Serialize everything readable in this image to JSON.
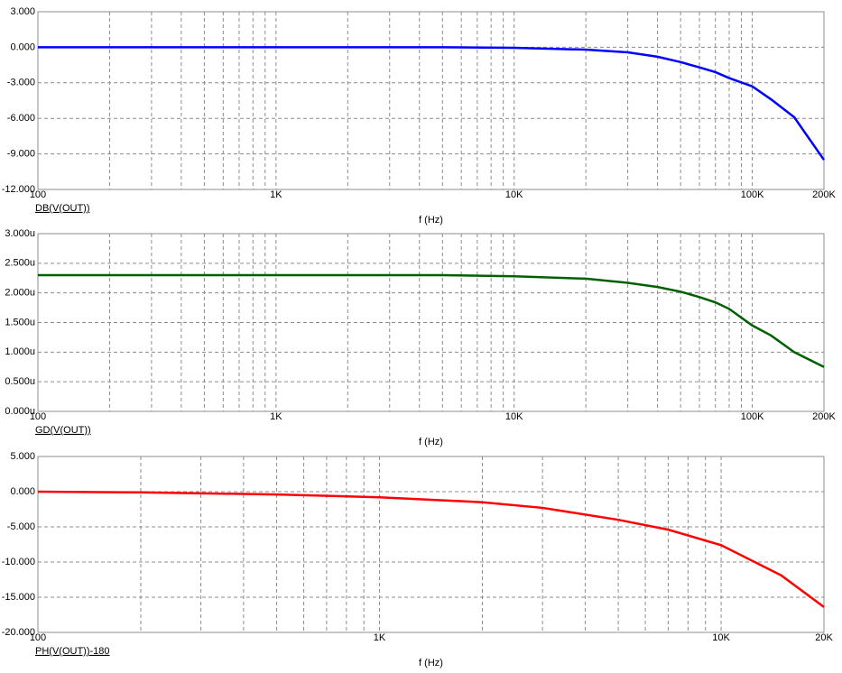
{
  "chart_data": [
    {
      "type": "line",
      "xlog": true,
      "grid": true,
      "xlabel": "f (Hz)",
      "x": [
        100,
        1000,
        5000,
        10000,
        20000,
        30000,
        40000,
        50000,
        60000,
        70000,
        80000,
        100000,
        120000,
        150000,
        200000
      ],
      "series": [
        {
          "name": "DB(V(OUT))",
          "color": "#0000ff",
          "values": [
            0,
            0,
            0,
            -0.05,
            -0.2,
            -0.43,
            -0.8,
            -1.25,
            -1.7,
            -2.1,
            -2.6,
            -3.3,
            -4.4,
            -5.9,
            -9.5
          ]
        }
      ],
      "xlim": [
        100,
        200000
      ],
      "xticks": [
        100,
        {
          "value": 1000,
          "label": "1K"
        },
        {
          "value": 10000,
          "label": "10K"
        },
        {
          "value": 100000,
          "label": "100K"
        },
        {
          "value": 200000,
          "label": "200K"
        }
      ],
      "minor_xticks": [
        200,
        300,
        400,
        500,
        600,
        700,
        800,
        900,
        2000,
        3000,
        4000,
        5000,
        6000,
        7000,
        8000,
        9000,
        20000,
        30000,
        40000,
        50000,
        60000,
        70000,
        80000,
        90000
      ],
      "ylim": [
        -12,
        3
      ],
      "yticks": [
        {
          "value": -12,
          "label": "-12.000"
        },
        {
          "value": -9,
          "label": "-9.000"
        },
        {
          "value": -6,
          "label": "-6.000"
        },
        {
          "value": -3,
          "label": "-3.000"
        },
        {
          "value": 0,
          "label": "0.000"
        },
        {
          "value": 3,
          "label": "3.000"
        }
      ]
    },
    {
      "type": "line",
      "xlog": true,
      "grid": true,
      "xlabel": "f (Hz)",
      "x": [
        100,
        1000,
        5000,
        10000,
        20000,
        30000,
        40000,
        50000,
        60000,
        70000,
        80000,
        100000,
        120000,
        150000,
        200000
      ],
      "series": [
        {
          "name": "GD(V(OUT))",
          "color": "#006000",
          "values": [
            2.3,
            2.3,
            2.3,
            2.28,
            2.24,
            2.17,
            2.1,
            2.02,
            1.93,
            1.84,
            1.73,
            1.45,
            1.28,
            1.0,
            0.75
          ]
        }
      ],
      "xlim": [
        100,
        200000
      ],
      "xticks": [
        100,
        {
          "value": 1000,
          "label": "1K"
        },
        {
          "value": 10000,
          "label": "10K"
        },
        {
          "value": 100000,
          "label": "100K"
        },
        {
          "value": 200000,
          "label": "200K"
        }
      ],
      "minor_xticks": [
        200,
        300,
        400,
        500,
        600,
        700,
        800,
        900,
        2000,
        3000,
        4000,
        5000,
        6000,
        7000,
        8000,
        9000,
        20000,
        30000,
        40000,
        50000,
        60000,
        70000,
        80000,
        90000
      ],
      "ylim": [
        0,
        3
      ],
      "yticks": [
        {
          "value": 0,
          "label": "0.000u"
        },
        {
          "value": 0.5,
          "label": "0.500u"
        },
        {
          "value": 1,
          "label": "1.000u"
        },
        {
          "value": 1.5,
          "label": "1.500u"
        },
        {
          "value": 2,
          "label": "2.000u"
        },
        {
          "value": 2.5,
          "label": "2.500u"
        },
        {
          "value": 3,
          "label": "3.000u"
        }
      ]
    },
    {
      "type": "line",
      "xlog": true,
      "grid": true,
      "xlabel": "f (Hz)",
      "x": [
        100,
        200,
        500,
        1000,
        2000,
        3000,
        5000,
        7000,
        10000,
        15000,
        20000
      ],
      "series": [
        {
          "name": "PH(V(OUT))-180",
          "color": "#ff0000",
          "values": [
            0,
            -0.1,
            -0.4,
            -0.8,
            -1.5,
            -2.3,
            -4.0,
            -5.4,
            -7.6,
            -11.9,
            -16.4
          ]
        }
      ],
      "xlim": [
        100,
        20000
      ],
      "xticks": [
        100,
        {
          "value": 1000,
          "label": "1K"
        },
        {
          "value": 10000,
          "label": "10K"
        },
        {
          "value": 20000,
          "label": "20K"
        }
      ],
      "minor_xticks": [
        200,
        300,
        400,
        500,
        600,
        700,
        800,
        900,
        2000,
        3000,
        4000,
        5000,
        6000,
        7000,
        8000,
        9000
      ],
      "ylim": [
        -20,
        5
      ],
      "yticks": [
        {
          "value": -20,
          "label": "-20.000"
        },
        {
          "value": -15,
          "label": "-15.000"
        },
        {
          "value": -10,
          "label": "-10.000"
        },
        {
          "value": -5,
          "label": "-5.000"
        },
        {
          "value": 0,
          "label": "0.000"
        },
        {
          "value": 5,
          "label": "5.000"
        }
      ]
    }
  ]
}
